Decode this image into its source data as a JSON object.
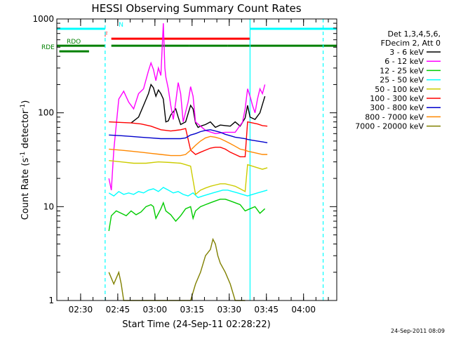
{
  "chart_data": {
    "type": "line",
    "title": "HESSI Observing Summary Count Rates",
    "xlabel": "Start Time (24-Sep-11 02:28:22)",
    "ylabel_parts": [
      "Count Rate (s",
      "-1",
      " detector",
      "-1",
      ")"
    ],
    "x_unit": "minutes since 02:28:22 UT",
    "xlim": [
      -8,
      105
    ],
    "ylim": [
      1,
      1000
    ],
    "yscale": "log",
    "x_tick_labels": [
      {
        "t": 1.6,
        "label": "02:30"
      },
      {
        "t": 16.6,
        "label": "02:45"
      },
      {
        "t": 31.6,
        "label": "03:00"
      },
      {
        "t": 46.6,
        "label": "03:15"
      },
      {
        "t": 61.6,
        "label": "03:30"
      },
      {
        "t": 76.6,
        "label": "03:45"
      },
      {
        "t": 91.6,
        "label": "04:00"
      }
    ],
    "y_tick_labels": [
      {
        "v": 1,
        "label": "1"
      },
      {
        "v": 10,
        "label": "10"
      },
      {
        "v": 100,
        "label": "100"
      },
      {
        "v": 1000,
        "label": "1000"
      }
    ],
    "legend": {
      "header": [
        "Det 1,3,4,5,6,",
        "FDecim 2, Att 0"
      ],
      "placement": "right"
    },
    "series": [
      {
        "name": "3 - 6 keV",
        "color": "#000000",
        "points": [
          [
            22,
            78
          ],
          [
            25,
            90
          ],
          [
            27,
            120
          ],
          [
            29,
            160
          ],
          [
            30,
            200
          ],
          [
            31,
            185
          ],
          [
            32,
            150
          ],
          [
            33,
            175
          ],
          [
            34,
            160
          ],
          [
            35,
            140
          ],
          [
            36,
            80
          ],
          [
            37,
            82
          ],
          [
            38,
            95
          ],
          [
            40,
            110
          ],
          [
            41,
            90
          ],
          [
            42,
            75
          ],
          [
            44,
            80
          ],
          [
            46,
            120
          ],
          [
            47,
            110
          ],
          [
            48,
            78
          ],
          [
            49,
            70
          ],
          [
            50,
            72
          ],
          [
            52,
            75
          ],
          [
            54,
            80
          ],
          [
            56,
            70
          ],
          [
            58,
            74
          ],
          [
            60,
            73
          ],
          [
            62,
            72
          ],
          [
            64,
            80
          ],
          [
            66,
            72
          ],
          [
            68,
            88
          ],
          [
            69,
            120
          ],
          [
            70,
            90
          ],
          [
            72,
            85
          ],
          [
            74,
            100
          ],
          [
            76,
            150
          ]
        ]
      },
      {
        "name": "6 - 12 keV",
        "color": "#ff00ff",
        "points": [
          [
            13,
            20
          ],
          [
            14,
            15
          ],
          [
            15,
            40
          ],
          [
            17,
            140
          ],
          [
            19,
            170
          ],
          [
            21,
            130
          ],
          [
            23,
            110
          ],
          [
            25,
            160
          ],
          [
            27,
            180
          ],
          [
            29,
            280
          ],
          [
            30,
            340
          ],
          [
            31,
            290
          ],
          [
            32,
            220
          ],
          [
            33,
            300
          ],
          [
            34,
            250
          ],
          [
            35,
            900
          ],
          [
            35.6,
            300
          ],
          [
            36,
            240
          ],
          [
            37,
            180
          ],
          [
            38,
            120
          ],
          [
            39,
            85
          ],
          [
            40,
            130
          ],
          [
            41,
            210
          ],
          [
            42,
            160
          ],
          [
            43,
            80
          ],
          [
            45,
            130
          ],
          [
            46,
            190
          ],
          [
            47,
            150
          ],
          [
            48,
            80
          ],
          [
            52,
            65
          ],
          [
            56,
            60
          ],
          [
            60,
            62
          ],
          [
            64,
            62
          ],
          [
            67,
            80
          ],
          [
            68,
            110
          ],
          [
            69,
            180
          ],
          [
            70,
            150
          ],
          [
            71,
            120
          ],
          [
            72,
            100
          ],
          [
            73,
            140
          ],
          [
            74,
            180
          ],
          [
            75,
            160
          ],
          [
            76,
            200
          ]
        ]
      },
      {
        "name": "12 - 25 keV",
        "color": "#00cc00",
        "points": [
          [
            13,
            5.5
          ],
          [
            14,
            8
          ],
          [
            16,
            9
          ],
          [
            18,
            8.5
          ],
          [
            20,
            8
          ],
          [
            22,
            9
          ],
          [
            24,
            8.2
          ],
          [
            26,
            8.8
          ],
          [
            28,
            10
          ],
          [
            30,
            10.5
          ],
          [
            31,
            10
          ],
          [
            32,
            7.5
          ],
          [
            34,
            9.5
          ],
          [
            35,
            11
          ],
          [
            36,
            9
          ],
          [
            38,
            8.2
          ],
          [
            40,
            7
          ],
          [
            42,
            8
          ],
          [
            44,
            9.5
          ],
          [
            46,
            10
          ],
          [
            47,
            7.5
          ],
          [
            48,
            9
          ],
          [
            50,
            10
          ],
          [
            52,
            10.5
          ],
          [
            54,
            11
          ],
          [
            56,
            11.5
          ],
          [
            58,
            12
          ],
          [
            60,
            12
          ],
          [
            62,
            11.5
          ],
          [
            64,
            11
          ],
          [
            66,
            10.5
          ],
          [
            68,
            9
          ],
          [
            70,
            9.5
          ],
          [
            72,
            10
          ],
          [
            74,
            8.5
          ],
          [
            76,
            9.5
          ]
        ]
      },
      {
        "name": "25 - 50 keV",
        "color": "#00ffff",
        "points": [
          [
            13,
            14
          ],
          [
            15,
            13
          ],
          [
            17,
            14.5
          ],
          [
            19,
            13.5
          ],
          [
            21,
            14
          ],
          [
            23,
            13.5
          ],
          [
            25,
            14.5
          ],
          [
            27,
            14
          ],
          [
            29,
            15
          ],
          [
            31,
            15.5
          ],
          [
            33,
            14.5
          ],
          [
            35,
            16
          ],
          [
            37,
            15
          ],
          [
            39,
            14
          ],
          [
            41,
            14.5
          ],
          [
            43,
            13.5
          ],
          [
            45,
            13
          ],
          [
            47,
            14
          ],
          [
            49,
            12.5
          ],
          [
            51,
            13
          ],
          [
            53,
            13.5
          ],
          [
            55,
            14
          ],
          [
            57,
            14.5
          ],
          [
            59,
            15
          ],
          [
            61,
            15
          ],
          [
            63,
            14.5
          ],
          [
            65,
            14
          ],
          [
            67,
            13.5
          ],
          [
            69,
            13
          ],
          [
            71,
            13.5
          ],
          [
            73,
            14
          ],
          [
            75,
            14.5
          ],
          [
            77,
            15
          ]
        ]
      },
      {
        "name": "50 - 100 keV",
        "color": "#cccc00",
        "points": [
          [
            13,
            31
          ],
          [
            18,
            30
          ],
          [
            23,
            29
          ],
          [
            28,
            29
          ],
          [
            33,
            30
          ],
          [
            38,
            29.5
          ],
          [
            42,
            29
          ],
          [
            44,
            28
          ],
          [
            46,
            27
          ],
          [
            48,
            13.5
          ],
          [
            50,
            15
          ],
          [
            52,
            15.8
          ],
          [
            54,
            16.5
          ],
          [
            56,
            17
          ],
          [
            58,
            17.5
          ],
          [
            60,
            17.5
          ],
          [
            62,
            17
          ],
          [
            64,
            16.5
          ],
          [
            66,
            15.5
          ],
          [
            68,
            14.5
          ],
          [
            69,
            28
          ],
          [
            71,
            27
          ],
          [
            73,
            26
          ],
          [
            75,
            25
          ],
          [
            77,
            26
          ]
        ]
      },
      {
        "name": "100 - 300 keV",
        "color": "#ff0000",
        "points": [
          [
            13,
            80
          ],
          [
            18,
            79
          ],
          [
            22,
            78
          ],
          [
            26,
            76
          ],
          [
            30,
            72
          ],
          [
            34,
            66
          ],
          [
            38,
            64
          ],
          [
            42,
            66
          ],
          [
            44,
            68
          ],
          [
            46,
            40
          ],
          [
            48,
            36
          ],
          [
            50,
            38
          ],
          [
            52,
            40
          ],
          [
            54,
            42
          ],
          [
            56,
            43
          ],
          [
            58,
            43
          ],
          [
            60,
            41
          ],
          [
            62,
            38
          ],
          [
            64,
            36
          ],
          [
            66,
            34
          ],
          [
            68,
            34
          ],
          [
            69,
            80
          ],
          [
            71,
            78
          ],
          [
            73,
            76
          ],
          [
            75,
            73
          ],
          [
            77,
            72
          ]
        ]
      },
      {
        "name": "300 - 800 keV",
        "color": "#0000cc",
        "points": [
          [
            13,
            58
          ],
          [
            18,
            57
          ],
          [
            22,
            56
          ],
          [
            26,
            55
          ],
          [
            30,
            54
          ],
          [
            34,
            53
          ],
          [
            38,
            53
          ],
          [
            42,
            53
          ],
          [
            44,
            54
          ],
          [
            46,
            58
          ],
          [
            48,
            60
          ],
          [
            50,
            63
          ],
          [
            52,
            65
          ],
          [
            54,
            66
          ],
          [
            56,
            64
          ],
          [
            58,
            62
          ],
          [
            60,
            59
          ],
          [
            62,
            57
          ],
          [
            64,
            55
          ],
          [
            66,
            54
          ],
          [
            68,
            53
          ],
          [
            69,
            52
          ],
          [
            71,
            51
          ],
          [
            73,
            50
          ],
          [
            75,
            49
          ],
          [
            77,
            48
          ]
        ]
      },
      {
        "name": "800 - 7000 keV",
        "color": "#ff8800",
        "points": [
          [
            13,
            41
          ],
          [
            18,
            40
          ],
          [
            22,
            39
          ],
          [
            26,
            38
          ],
          [
            30,
            37
          ],
          [
            34,
            36
          ],
          [
            38,
            35
          ],
          [
            42,
            35
          ],
          [
            44,
            36
          ],
          [
            46,
            40
          ],
          [
            48,
            45
          ],
          [
            50,
            50
          ],
          [
            52,
            54
          ],
          [
            54,
            56
          ],
          [
            56,
            55
          ],
          [
            58,
            53
          ],
          [
            60,
            50
          ],
          [
            62,
            47
          ],
          [
            64,
            44
          ],
          [
            66,
            41
          ],
          [
            68,
            40
          ],
          [
            69,
            39
          ],
          [
            71,
            38
          ],
          [
            73,
            37
          ],
          [
            75,
            36
          ],
          [
            77,
            36
          ]
        ]
      },
      {
        "name": "7000 - 20000 keV",
        "color": "#808000",
        "points": [
          [
            13,
            2
          ],
          [
            15,
            1.5
          ],
          [
            17,
            2
          ],
          [
            18,
            1.5
          ],
          [
            19,
            1
          ],
          [
            22,
            1
          ],
          [
            30,
            1
          ],
          [
            40,
            1
          ],
          [
            46,
            1
          ],
          [
            48,
            1.5
          ],
          [
            50,
            2
          ],
          [
            52,
            3
          ],
          [
            54,
            3.5
          ],
          [
            55,
            4.5
          ],
          [
            56,
            4
          ],
          [
            57,
            3
          ],
          [
            58,
            2.5
          ],
          [
            60,
            2
          ],
          [
            62,
            1.5
          ],
          [
            64,
            1
          ],
          [
            68,
            1
          ]
        ]
      }
    ],
    "annotations": [
      {
        "label": "N",
        "color": "#00ffff",
        "segments": [
          [
            -8,
            11.5
          ],
          [
            70,
            105
          ]
        ],
        "level": 0.965
      },
      {
        "label": "F",
        "color": "#ff0000",
        "segments": [
          [
            14,
            70
          ]
        ],
        "level": 0.93
      },
      {
        "label": "RDO",
        "color": "#008000",
        "segments": [
          [
            -8,
            11.5
          ],
          [
            14,
            45.5
          ],
          [
            45.5,
            61
          ],
          [
            61,
            105
          ]
        ],
        "level": 0.905
      },
      {
        "label": "RDE",
        "color": "#008000",
        "segments": [
          [
            -7,
            5
          ]
        ],
        "level": 0.885
      }
    ],
    "vlines": [
      {
        "t": 11.5,
        "color": "#00ffff",
        "style": "dashed"
      },
      {
        "t": 70,
        "color": "#00ffff",
        "style": "solid"
      },
      {
        "t": 99.5,
        "color": "#00ffff",
        "style": "dashed"
      }
    ]
  },
  "footer": {
    "date": "24-Sep-2011 08:09"
  }
}
